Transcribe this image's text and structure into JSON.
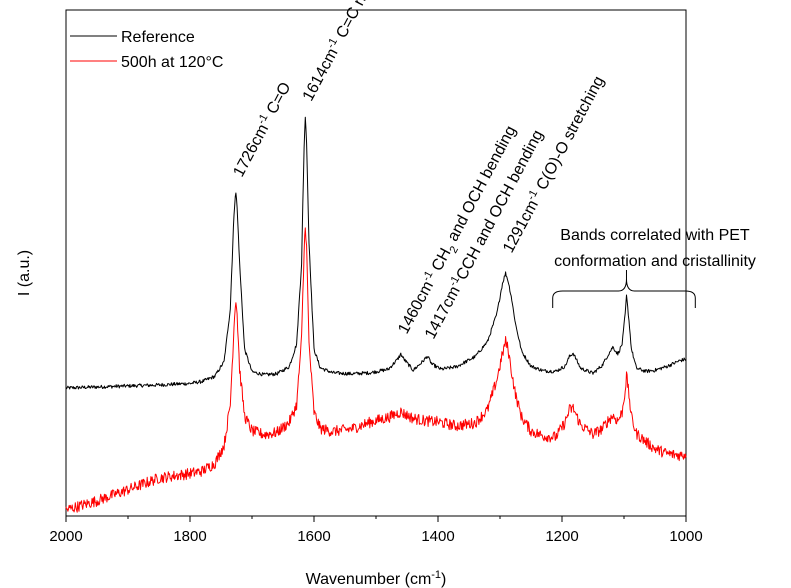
{
  "chart_data": {
    "type": "line",
    "title": "",
    "xlabel": "Wavenumber (cm",
    "xlabel_sup": "-1",
    "xlabel_end": ")",
    "ylabel": "I (a.u.)",
    "xlim": [
      2000,
      1000
    ],
    "x_reversed": true,
    "x_ticks": [
      2000,
      1800,
      1600,
      1400,
      1200,
      1000
    ],
    "ylim": [
      0,
      100
    ],
    "y_ticks_shown": false,
    "grid": false,
    "legend_position": "top-left",
    "series": [
      {
        "name": "Reference",
        "color": "#000000",
        "x": [
          2000,
          1950,
          1900,
          1850,
          1800,
          1780,
          1760,
          1745,
          1735,
          1730,
          1727,
          1726,
          1724,
          1720,
          1712,
          1700,
          1680,
          1660,
          1640,
          1628,
          1620,
          1616,
          1614,
          1612,
          1608,
          1600,
          1590,
          1570,
          1540,
          1510,
          1480,
          1465,
          1460,
          1455,
          1440,
          1425,
          1417,
          1410,
          1395,
          1370,
          1340,
          1320,
          1305,
          1296,
          1291,
          1287,
          1282,
          1275,
          1265,
          1250,
          1230,
          1210,
          1195,
          1188,
          1182,
          1170,
          1150,
          1135,
          1125,
          1118,
          1110,
          1103,
          1098,
          1096,
          1093,
          1088,
          1080,
          1065,
          1050,
          1030,
          1010,
          1000
        ],
        "values": [
          25.3,
          25.5,
          25.7,
          25.9,
          26.2,
          26.6,
          27.6,
          30.5,
          41,
          57,
          63.5,
          64,
          61,
          50,
          33,
          28.5,
          27.9,
          28.1,
          29.5,
          34,
          50,
          73,
          79,
          74,
          54,
          33,
          29.3,
          28.3,
          28.1,
          28.3,
          29,
          31,
          32,
          31,
          28.8,
          30.5,
          31.6,
          30,
          29,
          29.5,
          31.5,
          34.5,
          40,
          46,
          48,
          46.5,
          43.5,
          38,
          32.5,
          29.6,
          28.7,
          28.6,
          29.6,
          31.5,
          32.2,
          29.2,
          28.2,
          29.8,
          32,
          33.4,
          32,
          34,
          40,
          43.5,
          40,
          33,
          29.2,
          28.6,
          28.8,
          29.6,
          30.7,
          31
        ]
      },
      {
        "name": "500h at 120°C",
        "color": "#ff0000",
        "x": [
          2000,
          1950,
          1900,
          1850,
          1800,
          1780,
          1760,
          1745,
          1735,
          1730,
          1727,
          1726,
          1724,
          1720,
          1712,
          1700,
          1680,
          1660,
          1640,
          1628,
          1620,
          1616,
          1614,
          1612,
          1608,
          1600,
          1590,
          1570,
          1540,
          1510,
          1480,
          1465,
          1460,
          1455,
          1440,
          1420,
          1400,
          1370,
          1340,
          1320,
          1305,
          1296,
          1291,
          1287,
          1282,
          1275,
          1265,
          1250,
          1230,
          1210,
          1195,
          1188,
          1182,
          1170,
          1150,
          1135,
          1125,
          1118,
          1110,
          1103,
          1098,
          1096,
          1093,
          1088,
          1080,
          1065,
          1050,
          1030,
          1010,
          1000
        ],
        "values": [
          1.2,
          3,
          5.2,
          7.5,
          8.4,
          8.9,
          10.4,
          14,
          22,
          35,
          42,
          42.8,
          40,
          29,
          19.8,
          16.8,
          16.1,
          16.5,
          18.5,
          22,
          35,
          52,
          58,
          53,
          34,
          20.5,
          17.3,
          16.7,
          17.2,
          18.5,
          19.5,
          20.3,
          20.6,
          20.2,
          19.3,
          18.8,
          18.6,
          17.8,
          18.4,
          21,
          27,
          32,
          34.5,
          33,
          29,
          24,
          19.5,
          16.8,
          15.8,
          15.6,
          18.5,
          21,
          21.3,
          18,
          16.2,
          17.2,
          19,
          19.8,
          18.8,
          20.5,
          25,
          27.8,
          25,
          19.5,
          16.3,
          14.7,
          13.3,
          12.3,
          12,
          12.2
        ]
      }
    ],
    "annotations": [
      {
        "id": "ann-c-o",
        "parts": [
          "1726cm",
          "-1",
          " C=O"
        ],
        "x": 1726,
        "y": 66,
        "angle": -62
      },
      {
        "id": "ann-c-c-ring",
        "parts": [
          "1614cm",
          "-1",
          " C=C ring"
        ],
        "x": 1614,
        "y": 81,
        "angle": -62
      },
      {
        "id": "ann-ch2-och",
        "parts": [
          "1460cm",
          "-1",
          " CH",
          "2",
          " and OCH bending"
        ],
        "x": 1460,
        "y": 35,
        "angle": -62
      },
      {
        "id": "ann-cch-och",
        "parts": [
          "1417cm",
          "-1",
          "CCH and OCH bending"
        ],
        "x": 1417,
        "y": 34,
        "angle": -62
      },
      {
        "id": "ann-c-o-o",
        "parts": [
          "1291cm",
          "-1",
          " C(O)-O stretching"
        ],
        "x": 1291,
        "y": 51,
        "angle": -62
      }
    ],
    "bracket_annotation": {
      "lines": [
        "Bands correlated with PET",
        "conformation and cristallinity"
      ],
      "x_start": 1215,
      "x_end": 985,
      "x_center": 1096
    }
  }
}
